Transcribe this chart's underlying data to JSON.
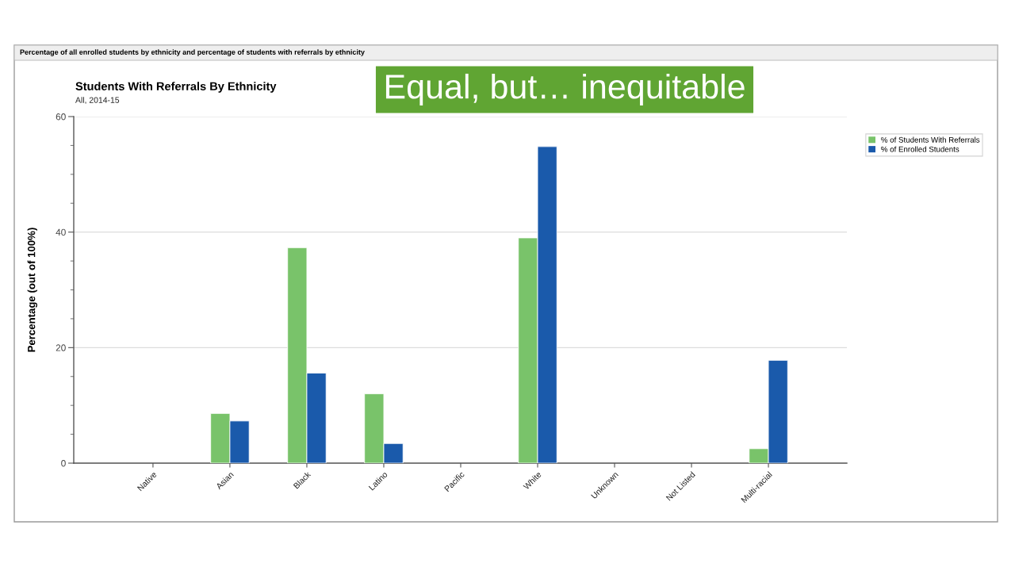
{
  "chart_data": {
    "type": "bar",
    "title": "Students With Referrals By Ethnicity",
    "subtitle": "All, 2014-15",
    "ylabel": "Percentage (out of 100%)",
    "categories": [
      "Native",
      "Asian",
      "Black",
      "Latino",
      "Pacific",
      "White",
      "Unknown",
      "Not Listed",
      "Multi-racial"
    ],
    "series": [
      {
        "name": "% of Students With Referrals",
        "color": "#79c36a",
        "values": [
          null,
          8.6,
          37.3,
          12.0,
          null,
          39.0,
          null,
          null,
          2.5
        ]
      },
      {
        "name": "% of Enrolled Students",
        "color": "#1a5aab",
        "values": [
          null,
          7.3,
          15.6,
          3.4,
          null,
          54.8,
          null,
          null,
          17.8
        ]
      }
    ],
    "ylim": [
      0,
      60
    ],
    "yticks": [
      0,
      {
        "value": 5,
        "label": null
      },
      {
        "value": 10,
        "label": null
      },
      {
        "value": 15,
        "label": null
      },
      20,
      {
        "value": 25,
        "label": null
      },
      {
        "value": 30,
        "label": null
      },
      {
        "value": 35,
        "label": null
      },
      40,
      {
        "value": 45,
        "label": null
      },
      {
        "value": 50,
        "label": null
      },
      {
        "value": 55,
        "label": null
      },
      60
    ],
    "grid": "y",
    "legend": "top right",
    "annotations": [
      "Percentage of all enrolled students by ethnicity and percentage of students with referrals by ethnicity",
      "Equal, but… inequitable"
    ]
  }
}
